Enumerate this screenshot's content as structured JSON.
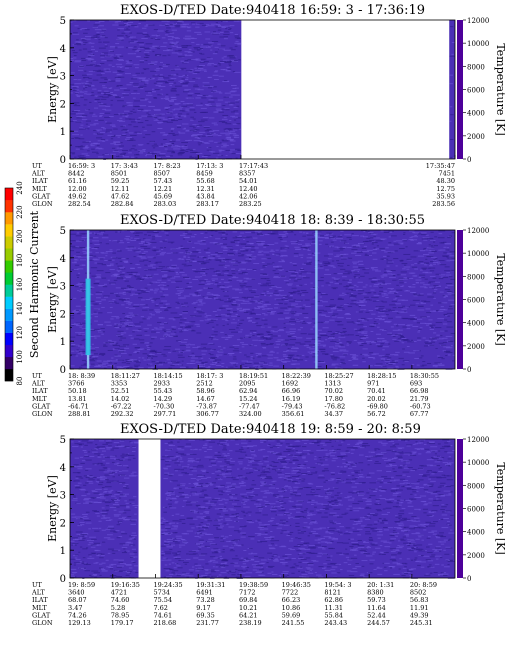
{
  "chart_data": [
    {
      "type": "heatmap",
      "title": "EXOS-D/TED",
      "date_label": "Date:940418",
      "time_range": "16:59: 3 - 17:36:19",
      "ylabel": "Energy [eV]",
      "ylim": [
        0,
        5
      ],
      "yticks": [
        "0",
        "1",
        "2",
        "3",
        "4",
        "5"
      ],
      "colorbar_label": "Temperature [K]",
      "colorbar_range": [
        0,
        12000
      ],
      "colorbar_ticks": [
        "0",
        "2000",
        "4000",
        "6000",
        "8000",
        "10000",
        "12000"
      ],
      "data_coverage": [
        [
          0.0,
          0.445
        ],
        [
          0.985,
          1.0
        ]
      ],
      "bright_lines": [],
      "table": {
        "row_labels": [
          "UT",
          "ALT",
          "ILAT",
          "MLT",
          "GLAT",
          "GLON"
        ],
        "columns": [
          {
            "pos": 0.0,
            "values": [
              "16:59: 3",
              "8442",
              "61.16",
              "12.00",
              "49.62",
              "282.54"
            ]
          },
          {
            "pos": 0.111,
            "values": [
              "17: 3:43",
              "8501",
              "59.25",
              "12.11",
              "47.62",
              "282.84"
            ]
          },
          {
            "pos": 0.222,
            "values": [
              "17: 8:23",
              "8507",
              "57.43",
              "12.21",
              "45.69",
              "283.03"
            ]
          },
          {
            "pos": 0.333,
            "values": [
              "17:13: 3",
              "8459",
              "55.68",
              "12.31",
              "43.84",
              "283.17"
            ]
          },
          {
            "pos": 0.444,
            "values": [
              "17:17:43",
              "8357",
              "54.01",
              "12.40",
              "42.06",
              "283.25"
            ]
          },
          {
            "pos": 1.0,
            "values": [
              "17:35:47",
              "7451",
              "48.30",
              "12.75",
              "35.93",
              "283.56"
            ]
          }
        ]
      }
    },
    {
      "type": "heatmap",
      "title": "EXOS-D/TED",
      "date_label": "Date:940418",
      "time_range": "18: 8:39 - 18:30:55",
      "ylabel": "Energy [eV]",
      "ylim": [
        0,
        5
      ],
      "yticks": [
        "0",
        "1",
        "2",
        "3",
        "4",
        "5"
      ],
      "colorbar_label": "Temperature [K]",
      "colorbar_range": [
        0,
        12000
      ],
      "colorbar_ticks": [
        "0",
        "2000",
        "4000",
        "6000",
        "8000",
        "10000",
        "12000"
      ],
      "data_coverage": [
        [
          0.0,
          1.0
        ]
      ],
      "bright_lines": [
        0.047,
        0.64
      ],
      "table": {
        "row_labels": [
          "UT",
          "ALT",
          "ILAT",
          "MLT",
          "GLAT",
          "GLON"
        ],
        "columns": [
          {
            "pos": 0.0,
            "values": [
              "18: 8:39",
              "3766",
              "50.18",
              "13.81",
              "-64.71",
              "288.81"
            ]
          },
          {
            "pos": 0.111,
            "values": [
              "18:11:27",
              "3353",
              "52.51",
              "14.02",
              "-67.22",
              "292.32"
            ]
          },
          {
            "pos": 0.222,
            "values": [
              "18:14:15",
              "2933",
              "55.43",
              "14.29",
              "-70.30",
              "297.71"
            ]
          },
          {
            "pos": 0.333,
            "values": [
              "18:17: 3",
              "2512",
              "58.96",
              "14.67",
              "-73.87",
              "306.77"
            ]
          },
          {
            "pos": 0.444,
            "values": [
              "18:19:51",
              "2095",
              "62.94",
              "15.24",
              "-77.47",
              "324.00"
            ]
          },
          {
            "pos": 0.555,
            "values": [
              "18:22:39",
              "1692",
              "66.96",
              "16.19",
              "-79.43",
              "356.61"
            ]
          },
          {
            "pos": 0.666,
            "values": [
              "18:25:27",
              "1313",
              "70.02",
              "17.80",
              "-76.82",
              "34.37"
            ]
          },
          {
            "pos": 0.777,
            "values": [
              "18:28:15",
              "971",
              "70.41",
              "20.02",
              "-69.80",
              "56.72"
            ]
          },
          {
            "pos": 0.888,
            "values": [
              "18:30:55",
              "693",
              "66.98",
              "21.79",
              "-60.73",
              "67.77"
            ]
          }
        ]
      }
    },
    {
      "type": "heatmap",
      "title": "EXOS-D/TED",
      "date_label": "Date:940418",
      "time_range": "19: 8:59 - 20: 8:59",
      "ylabel": "Energy [eV]",
      "ylim": [
        0,
        5
      ],
      "yticks": [
        "0",
        "1",
        "2",
        "3",
        "4",
        "5"
      ],
      "colorbar_label": "Temperature [K]",
      "colorbar_range": [
        0,
        12000
      ],
      "colorbar_ticks": [
        "0",
        "2000",
        "4000",
        "6000",
        "8000",
        "10000",
        "12000"
      ],
      "data_coverage": [
        [
          0.0,
          0.178
        ],
        [
          0.235,
          1.0
        ]
      ],
      "bright_lines": [],
      "table": {
        "row_labels": [
          "UT",
          "ALT",
          "ILAT",
          "MLT",
          "GLAT",
          "GLON"
        ],
        "columns": [
          {
            "pos": 0.0,
            "values": [
              "19: 8:59",
              "3640",
              "68.07",
              "3.47",
              "74.26",
              "129.13"
            ]
          },
          {
            "pos": 0.111,
            "values": [
              "19:16:35",
              "4721",
              "74.60",
              "5.28",
              "78.95",
              "179.17"
            ]
          },
          {
            "pos": 0.222,
            "values": [
              "19:24:35",
              "5734",
              "75.54",
              "7.62",
              "74.61",
              "218.68"
            ]
          },
          {
            "pos": 0.333,
            "values": [
              "19:31:31",
              "6491",
              "73.28",
              "9.17",
              "69.35",
              "231.77"
            ]
          },
          {
            "pos": 0.444,
            "values": [
              "19:38:59",
              "7172",
              "69.84",
              "10.21",
              "64.21",
              "238.19"
            ]
          },
          {
            "pos": 0.555,
            "values": [
              "19:46:35",
              "7722",
              "66.23",
              "10.86",
              "59.69",
              "241.55"
            ]
          },
          {
            "pos": 0.666,
            "values": [
              "19:54: 3",
              "8121",
              "62.86",
              "11.31",
              "55.84",
              "243.43"
            ]
          },
          {
            "pos": 0.777,
            "values": [
              "20: 1:31",
              "8380",
              "59.73",
              "11.64",
              "52.44",
              "244.57"
            ]
          },
          {
            "pos": 0.888,
            "values": [
              "20: 8:59",
              "8502",
              "56.83",
              "11.91",
              "49.39",
              "245.31"
            ]
          }
        ]
      }
    }
  ],
  "side_colorbar": {
    "label": "Second Harmonic Current",
    "range": [
      80,
      240
    ],
    "ticks": [
      "80",
      "100",
      "120",
      "140",
      "160",
      "180",
      "200",
      "220",
      "240"
    ],
    "colors": [
      "#000000",
      "#330066",
      "#3300cc",
      "#0000ff",
      "#0066ff",
      "#0099ff",
      "#00ccff",
      "#00cc99",
      "#00cc33",
      "#33cc00",
      "#99cc00",
      "#cccc00",
      "#ffcc00",
      "#ff9900",
      "#ff3300",
      "#ff0000"
    ]
  },
  "colors": {
    "heatmap_base": "#4b2fb6",
    "heatmap_light": "#6a50d6",
    "heatmap_dark": "#2f1c8f",
    "bright_line": "#9ad6ff",
    "temperature_bar": "#4d0099"
  }
}
